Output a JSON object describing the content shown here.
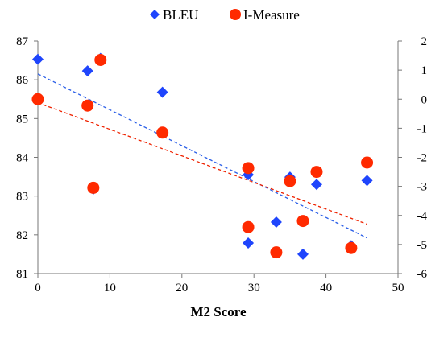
{
  "chart_data": {
    "type": "scatter",
    "title": "",
    "xlabel": "M2 Score",
    "ylabel": "",
    "y2label": "",
    "xlim": [
      0,
      50
    ],
    "ylim": [
      81,
      87
    ],
    "y2lim": [
      -6,
      2
    ],
    "x_ticks": [
      "0",
      "10",
      "20",
      "30",
      "40",
      "50"
    ],
    "y_ticks": [
      "81",
      "82",
      "83",
      "84",
      "85",
      "86",
      "87"
    ],
    "y2_ticks": [
      "-6",
      "-5",
      "-4",
      "-3",
      "-2",
      "-1",
      "0",
      "1",
      "2"
    ],
    "grid": false,
    "legend_position": "top",
    "series": [
      {
        "name": "BLEU",
        "axis": "left",
        "marker": "diamond",
        "color": "#1f45fc",
        "trendline_color": "#2b5fe8",
        "points": [
          {
            "x": 0.0,
            "y": 86.53
          },
          {
            "x": 6.9,
            "y": 86.23
          },
          {
            "x": 8.7,
            "y": 86.55
          },
          {
            "x": 7.7,
            "y": 83.18
          },
          {
            "x": 17.3,
            "y": 85.68
          },
          {
            "x": 29.2,
            "y": 83.55
          },
          {
            "x": 29.2,
            "y": 81.79
          },
          {
            "x": 33.1,
            "y": 82.33
          },
          {
            "x": 35.0,
            "y": 83.49
          },
          {
            "x": 36.8,
            "y": 81.5
          },
          {
            "x": 38.7,
            "y": 83.3
          },
          {
            "x": 43.5,
            "y": 81.72
          },
          {
            "x": 45.7,
            "y": 83.4
          }
        ]
      },
      {
        "name": "I-Measure",
        "axis": "right",
        "marker": "circle",
        "color": "#ff2a00",
        "trendline_color": "#ee2200",
        "points": [
          {
            "x": 0.0,
            "y": 0.0
          },
          {
            "x": 6.9,
            "y": -0.22
          },
          {
            "x": 8.7,
            "y": 1.35
          },
          {
            "x": 7.7,
            "y": -3.05
          },
          {
            "x": 17.3,
            "y": -1.15
          },
          {
            "x": 29.2,
            "y": -2.37
          },
          {
            "x": 29.2,
            "y": -4.4
          },
          {
            "x": 33.1,
            "y": -5.27
          },
          {
            "x": 35.0,
            "y": -2.82
          },
          {
            "x": 36.8,
            "y": -4.19
          },
          {
            "x": 38.7,
            "y": -2.5
          },
          {
            "x": 43.5,
            "y": -5.12
          },
          {
            "x": 45.7,
            "y": -2.18
          }
        ]
      }
    ]
  }
}
